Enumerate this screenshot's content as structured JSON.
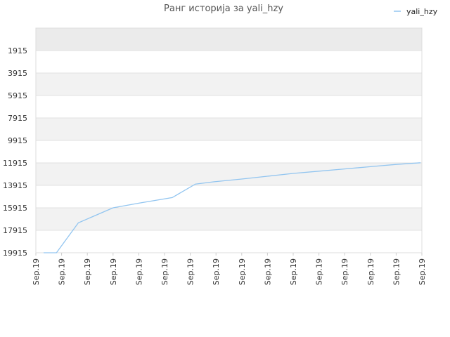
{
  "chart_data": {
    "type": "line",
    "title": "Ранг историја за yali_hzy",
    "legend": {
      "position": "top-right"
    },
    "grid": true,
    "y_inverted": true,
    "ylim": [
      19915,
      -85
    ],
    "yticks": [
      "1915",
      "3915",
      "5915",
      "7915",
      "9915",
      "11915",
      "13915",
      "15915",
      "17915",
      "19915"
    ],
    "ytick_values": [
      1915,
      3915,
      5915,
      7915,
      9915,
      11915,
      13915,
      15915,
      17915,
      19915
    ],
    "x": [
      "Sep.19",
      "Sep.19",
      "Sep.19",
      "Sep.19",
      "Sep.19",
      "Sep.19",
      "Sep.19",
      "Sep.19",
      "Sep.19",
      "Sep.19",
      "Sep.19",
      "Sep.19",
      "Sep.19",
      "Sep.19",
      "Sep.19",
      "Sep.19"
    ],
    "series": [
      {
        "name": "yali_hzy",
        "color": "#92c5f0",
        "x": [
          0.3,
          0.8,
          1.65,
          3.0,
          4.0,
          5.3,
          6.2,
          6.9,
          8.0,
          9.0,
          10.0,
          11.0,
          12.0,
          13.0,
          14.0,
          14.95
        ],
        "values": [
          19915,
          19915,
          17250,
          15915,
          15500,
          15000,
          13800,
          13600,
          13350,
          13100,
          12850,
          12650,
          12450,
          12250,
          12050,
          11900
        ]
      }
    ],
    "colors": {
      "band": "#f2f2f2",
      "top_band": "#ebebeb",
      "grid": "#e0e0e0",
      "axis": "#cccccc"
    }
  }
}
